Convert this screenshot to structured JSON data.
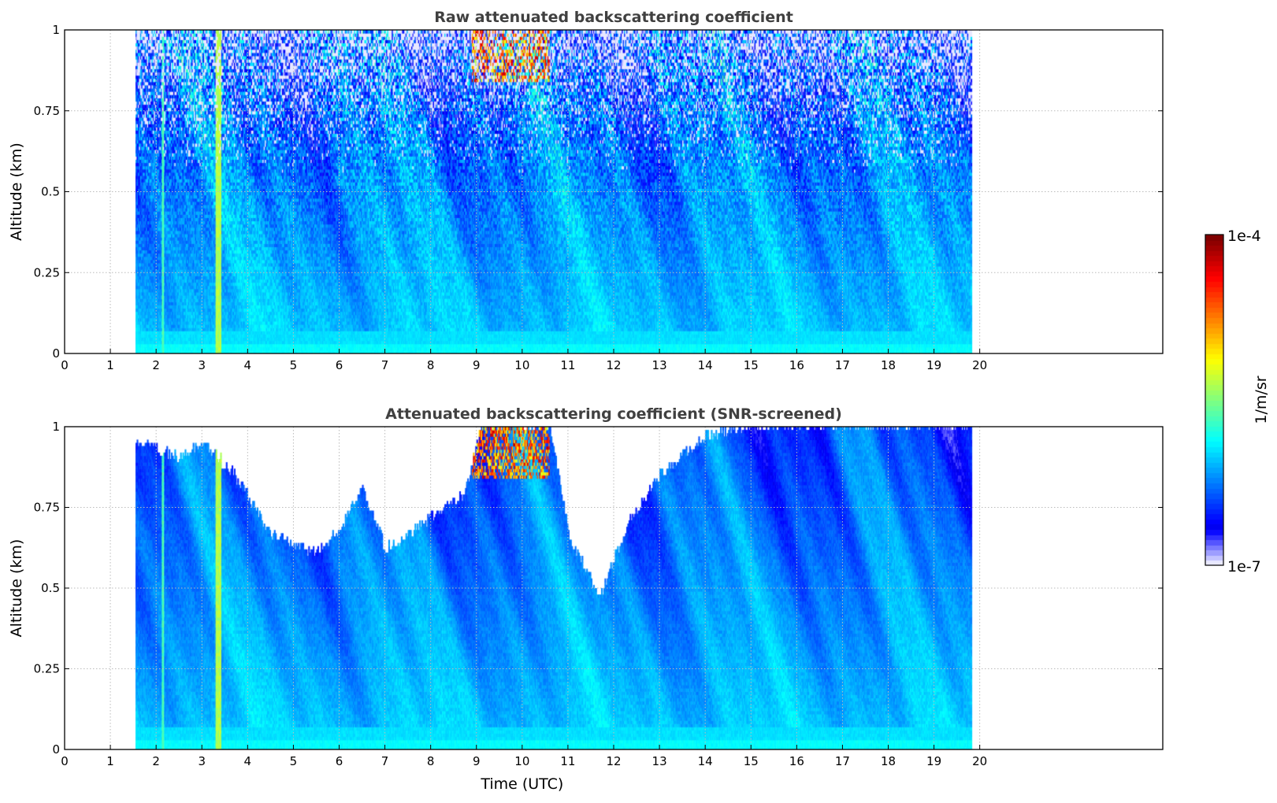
{
  "chart_data": [
    {
      "type": "heatmap",
      "title": "Raw attenuated backscattering coefficient",
      "xlabel": "",
      "ylabel": "Altitude (km)",
      "xlim": [
        0,
        24
      ],
      "ylim": [
        0,
        1
      ],
      "xticks": [
        "0",
        "1",
        "2",
        "3",
        "4",
        "5",
        "6",
        "7",
        "8",
        "9",
        "10",
        "11",
        "12",
        "13",
        "14",
        "15",
        "16",
        "17",
        "18",
        "19",
        "20"
      ],
      "yticks": [
        "0",
        "0.25",
        "0.5",
        "0.75",
        "1"
      ],
      "grid": true,
      "data_time_range_h": [
        1.55,
        19.8
      ],
      "screened": false
    },
    {
      "type": "heatmap",
      "title": "Attenuated backscattering coefficient (SNR-screened)",
      "xlabel": "Time (UTC)",
      "ylabel": "Altitude (km)",
      "xlim": [
        0,
        24
      ],
      "ylim": [
        0,
        1
      ],
      "xticks": [
        "0",
        "1",
        "2",
        "3",
        "4",
        "5",
        "6",
        "7",
        "8",
        "9",
        "10",
        "11",
        "12",
        "13",
        "14",
        "15",
        "16",
        "17",
        "18",
        "19",
        "20"
      ],
      "yticks": [
        "0",
        "0.25",
        "0.5",
        "0.75",
        "1"
      ],
      "grid": true,
      "data_time_range_h": [
        1.55,
        19.8
      ],
      "screened": true,
      "snr_cutoff_altitude_km": [
        [
          1.55,
          0.95
        ],
        [
          2.5,
          0.9
        ],
        [
          3.0,
          0.95
        ],
        [
          3.7,
          0.85
        ],
        [
          4.5,
          0.66
        ],
        [
          5.5,
          0.6
        ],
        [
          6.0,
          0.68
        ],
        [
          6.5,
          0.8
        ],
        [
          7.0,
          0.62
        ],
        [
          7.5,
          0.66
        ],
        [
          8.0,
          0.72
        ],
        [
          8.7,
          0.78
        ],
        [
          9.1,
          1.0
        ],
        [
          10.6,
          1.0
        ],
        [
          11.0,
          0.66
        ],
        [
          11.7,
          0.47
        ],
        [
          12.3,
          0.7
        ],
        [
          13.0,
          0.85
        ],
        [
          14.0,
          0.97
        ],
        [
          15.0,
          1.0
        ],
        [
          19.8,
          1.0
        ]
      ]
    }
  ],
  "colorbar": {
    "label": "1/m/sr",
    "min_label": "1e-7",
    "max_label": "1e-4",
    "scale": "log",
    "range": [
      1e-07,
      0.0001
    ],
    "colormap": "jet"
  }
}
